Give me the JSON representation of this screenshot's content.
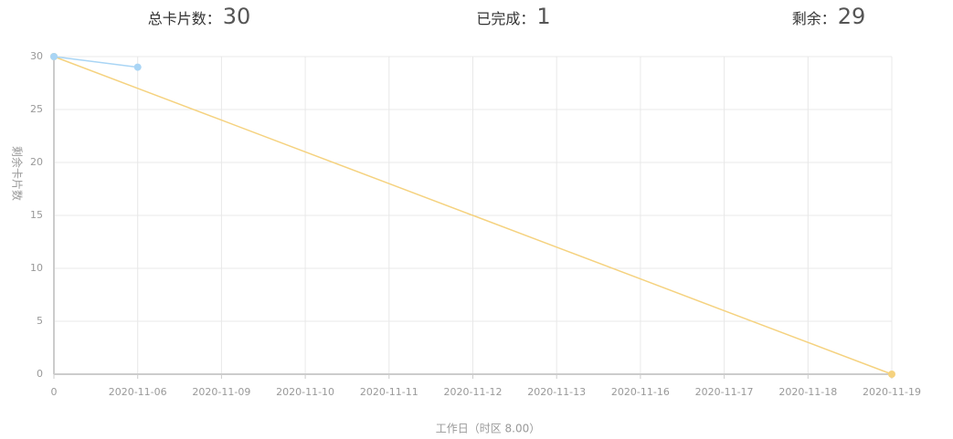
{
  "header": {
    "stats": [
      {
        "label": "总卡片数：",
        "value": 30
      },
      {
        "label": "已完成：",
        "value": 1
      },
      {
        "label": "剩余：",
        "value": 29
      }
    ]
  },
  "chart_data": {
    "type": "line",
    "x_label": "工作日（时区 8.00）",
    "y_label": "剩余卡片数",
    "categories": [
      "0",
      "2020-11-06",
      "2020-11-09",
      "2020-11-10",
      "2020-11-11",
      "2020-11-12",
      "2020-11-13",
      "2020-11-16",
      "2020-11-17",
      "2020-11-18",
      "2020-11-19"
    ],
    "series": [
      {
        "color": "#f5d27f",
        "values": [
          30,
          27,
          24,
          21,
          18,
          15,
          12,
          9,
          6,
          3,
          0
        ]
      },
      {
        "color": "#a9d5f5",
        "values": [
          30,
          29,
          null,
          null,
          null,
          null,
          null,
          null,
          null,
          null,
          null
        ]
      }
    ],
    "ylim": [
      0,
      30
    ],
    "yticks": [
      0,
      5,
      10,
      15,
      20,
      25,
      30
    ],
    "grid": true
  }
}
